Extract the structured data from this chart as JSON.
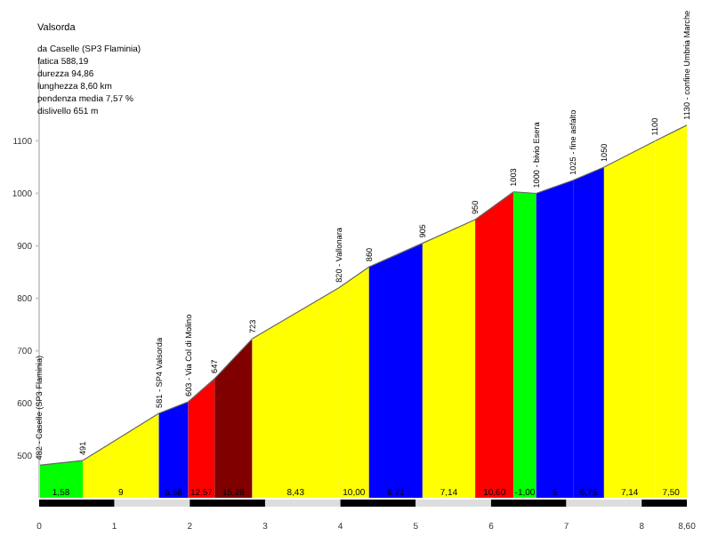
{
  "chart_data": {
    "type": "area",
    "title": "Valsorda",
    "annotations": [
      "da Caselle (SP3 Flaminia)",
      "fatica 588,19",
      "durezza 94,86",
      "lunghezza 8,60 km",
      "pendenza media 7,57 %",
      "dislivello 651 m",
      {
        "text": "1,58",
        "x": 0.29,
        "y": 425
      },
      {
        "text": "9",
        "x": 1.085,
        "y": 425
      },
      {
        "text": "5,58",
        "x": 1.785,
        "y": 425
      },
      {
        "text": "12,57",
        "x": 2.155,
        "y": 425
      },
      {
        "text": "15,28",
        "x": 2.58,
        "y": 425
      },
      {
        "text": "8,43",
        "x": 3.405,
        "y": 425
      },
      {
        "text": "10,00",
        "x": 4.18,
        "y": 425
      },
      {
        "text": "6,71",
        "x": 4.735,
        "y": 425
      },
      {
        "text": "7,14",
        "x": 5.44,
        "y": 425
      },
      {
        "text": "10,60",
        "x": 6.045,
        "y": 425
      },
      {
        "text": "-1,00",
        "x": 6.45,
        "y": 425
      },
      {
        "text": "5",
        "x": 6.845,
        "y": 425
      },
      {
        "text": "6,75",
        "x": 7.295,
        "y": 425
      },
      {
        "text": "7,14",
        "x": 7.84,
        "y": 425
      },
      {
        "text": "7,50",
        "x": 8.39,
        "y": 425
      }
    ],
    "xlim": [
      0,
      8.6
    ],
    "xticks": [
      0,
      1,
      2,
      3,
      4,
      5,
      6,
      7,
      8,
      {
        "value": 8.6,
        "label": "8,60"
      }
    ],
    "ylim": [
      420,
      1260
    ],
    "yticks": [
      500,
      600,
      700,
      800,
      900,
      1000,
      1100
    ],
    "grid": false,
    "legend": false,
    "series": [
      {
        "color": "#00ff00",
        "x": [
          0,
          0.58
        ],
        "values": [
          482,
          491
        ],
        "value_labels": [
          "482 - Caselle (SP3 Flaminia)",
          "491"
        ]
      },
      {
        "color": "#ffff00",
        "x": [
          0.58,
          1.59
        ],
        "values": [
          491,
          581
        ],
        "value_labels": [
          null,
          "581 - SP4 Valsorda"
        ]
      },
      {
        "color": "#0000ff",
        "x": [
          1.59,
          1.98
        ],
        "values": [
          581,
          603
        ],
        "value_labels": [
          null,
          "603 - Via Col di Molino"
        ]
      },
      {
        "color": "#ff0000",
        "x": [
          1.98,
          2.33
        ],
        "values": [
          603,
          647
        ],
        "value_labels": [
          null,
          "647"
        ]
      },
      {
        "color": "#800000",
        "x": [
          2.33,
          2.83
        ],
        "values": [
          647,
          723
        ],
        "value_labels": [
          null,
          "723"
        ]
      },
      {
        "color": "#ffff00",
        "x": [
          2.83,
          3.98
        ],
        "values": [
          723,
          820
        ],
        "value_labels": [
          null,
          "820 - Vallonara"
        ]
      },
      {
        "color": "#ffff00",
        "x": [
          3.98,
          4.38
        ],
        "values": [
          820,
          860
        ],
        "value_labels": [
          null,
          "860"
        ]
      },
      {
        "color": "#0000ff",
        "x": [
          4.38,
          5.09
        ],
        "values": [
          860,
          905
        ],
        "value_labels": [
          null,
          "905"
        ]
      },
      {
        "color": "#ffff00",
        "x": [
          5.09,
          5.79
        ],
        "values": [
          905,
          950
        ],
        "value_labels": [
          null,
          "950"
        ]
      },
      {
        "color": "#ff0000",
        "x": [
          5.79,
          6.3
        ],
        "values": [
          950,
          1003
        ],
        "value_labels": [
          null,
          "1003"
        ]
      },
      {
        "color": "#00ff00",
        "x": [
          6.3,
          6.6
        ],
        "values": [
          1003,
          1000
        ],
        "value_labels": [
          null,
          "1000 - bivio Esera"
        ]
      },
      {
        "color": "#0000ff",
        "x": [
          6.6,
          7.09
        ],
        "values": [
          1000,
          1025
        ],
        "value_labels": [
          null,
          "1025 - fine asfalto"
        ]
      },
      {
        "color": "#0000ff",
        "x": [
          7.09,
          7.5
        ],
        "values": [
          1025,
          1050
        ],
        "value_labels": [
          null,
          "1050"
        ]
      },
      {
        "color": "#ffff00",
        "x": [
          7.5,
          8.18
        ],
        "values": [
          1050,
          1100
        ],
        "value_labels": [
          null,
          "1100"
        ]
      },
      {
        "color": "#ffff00",
        "x": [
          8.18,
          8.6
        ],
        "values": [
          1100,
          1130
        ],
        "value_labels": [
          null,
          "1130 - confine Umbria Marche"
        ]
      }
    ]
  }
}
